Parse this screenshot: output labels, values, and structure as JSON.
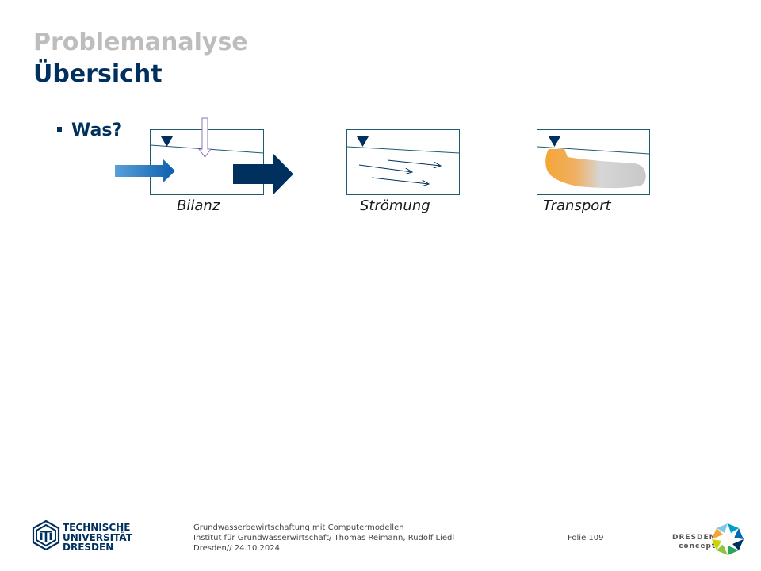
{
  "header": {
    "title_top": "Problemanalyse",
    "title_main": "Übersicht"
  },
  "content": {
    "bullet": "Was?",
    "diagrams": [
      {
        "label": "Bilanz",
        "icon": "balance-box-icon"
      },
      {
        "label": "Strömung",
        "icon": "flow-box-icon"
      },
      {
        "label": "Transport",
        "icon": "transport-box-icon"
      }
    ]
  },
  "footer": {
    "line1": "Grundwasserbewirtschaftung mit Computermodellen",
    "line2": "Institut für Grundwasserwirtschaft/ Thomas Reimann, Rudolf Liedl",
    "line3": "Dresden// 24.10.2024",
    "folio": "Folie 109",
    "tud_logo": {
      "line1": "TECHNISCHE",
      "line2": "UNIVERSITÄT",
      "line3": "DRESDEN"
    },
    "dc_logo": {
      "line1": "DRESDEN",
      "line2": "concept"
    }
  },
  "colors": {
    "dark_blue": "#00305e",
    "mid_blue": "#0069b4",
    "box_border": "#1f5b6e",
    "orange": "#f4a536",
    "gray_title": "#bdbdbd"
  }
}
